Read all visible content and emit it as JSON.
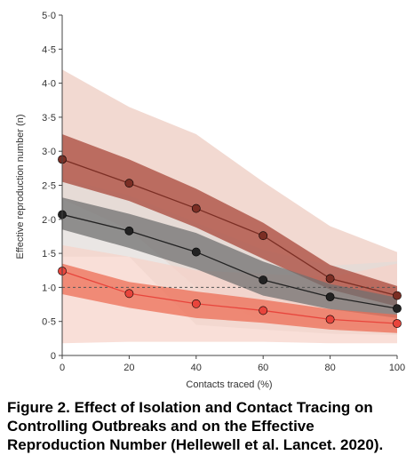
{
  "chart_data": {
    "type": "line",
    "title": "",
    "xlabel": "Contacts traced (%)",
    "ylabel": "Effective reproduction number (n)",
    "xlim": [
      0,
      100
    ],
    "ylim": [
      0,
      5.0
    ],
    "x_ticks": [
      0,
      20,
      40,
      60,
      80,
      100
    ],
    "y_ticks": [
      "0",
      "0·5",
      "1·0",
      "1·5",
      "2·0",
      "2·5",
      "3·0",
      "3·5",
      "4·0",
      "4·5",
      "5·0"
    ],
    "reference_line": 1.0,
    "x": [
      0,
      20,
      40,
      60,
      80,
      100
    ],
    "series": [
      {
        "color": "#7b2e24",
        "band_colors": [
          "#ecc9bd",
          "#a8473a"
        ],
        "values": [
          2.88,
          2.53,
          2.16,
          1.76,
          1.13,
          0.88
        ],
        "outer_band_high": [
          4.2,
          3.65,
          3.25,
          2.55,
          1.9,
          1.52
        ],
        "outer_band_low": [
          2.3,
          1.85,
          1.0,
          0.48,
          0.42,
          0.38
        ],
        "inner_band_high": [
          3.25,
          2.88,
          2.45,
          1.95,
          1.33,
          1.02
        ],
        "inner_band_low": [
          2.55,
          2.27,
          1.88,
          1.42,
          0.97,
          0.72
        ]
      },
      {
        "color": "#222222",
        "band_colors": [
          "#e1dcd8",
          "#707070"
        ],
        "values": [
          2.07,
          1.83,
          1.52,
          1.11,
          0.86,
          0.69
        ],
        "outer_band_high": [
          2.6,
          2.35,
          1.95,
          1.55,
          1.32,
          1.38
        ],
        "outer_band_low": [
          1.45,
          1.45,
          0.45,
          0.38,
          0.32,
          0.3
        ],
        "inner_band_high": [
          2.32,
          2.08,
          1.8,
          1.38,
          1.05,
          0.85
        ],
        "inner_band_low": [
          1.85,
          1.58,
          1.27,
          0.88,
          0.68,
          0.55
        ]
      },
      {
        "color": "#e8453c",
        "band_colors": [
          "#f7d2c8",
          "#ec6e55"
        ],
        "values": [
          1.24,
          0.91,
          0.76,
          0.66,
          0.53,
          0.47
        ],
        "outer_band_high": [
          1.62,
          1.45,
          1.25,
          1.2,
          1.15,
          1.35
        ],
        "outer_band_low": [
          0.18,
          0.2,
          0.2,
          0.2,
          0.18,
          0.18
        ],
        "inner_band_high": [
          1.35,
          1.08,
          0.94,
          0.82,
          0.68,
          0.6
        ],
        "inner_band_low": [
          0.9,
          0.7,
          0.55,
          0.48,
          0.38,
          0.33
        ]
      }
    ]
  },
  "caption": "Figure 2. Effect of Isolation and Contact Tracing on Controlling Outbreaks and on the Effective Reproduction Number (Hellewell et al. Lancet. 2020)."
}
